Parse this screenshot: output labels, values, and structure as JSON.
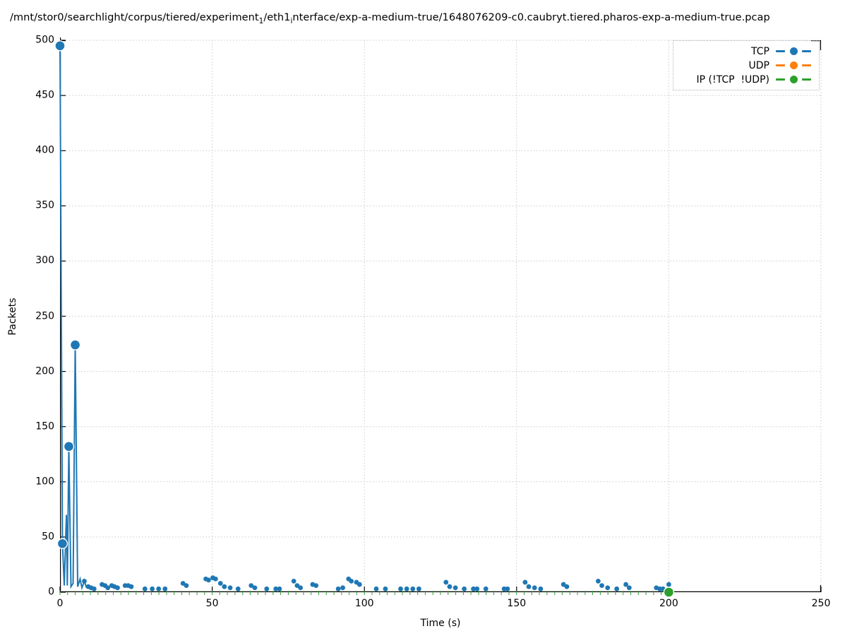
{
  "title": {
    "part1": "/mnt/stor0/searchlight/corpus/tiered/experiment",
    "sub1": "1",
    "part2": "/eth1",
    "sub2": "i",
    "part3": "nterface/exp-a-medium-true/1648076209-c0.caubryt.tiered.pharos-exp-a-medium-true.pcap"
  },
  "chart_data": {
    "type": "line",
    "title": "/mnt/stor0/searchlight/corpus/tiered/experiment_1/eth1_interface/exp-a-medium-true/1648076209-c0.caubryt.tiered.pharos-exp-a-medium-true.pcap",
    "xlabel": "Time (s)",
    "ylabel": "Packets",
    "xlim": [
      0,
      250
    ],
    "ylim": [
      0,
      500
    ],
    "x_ticks": [
      0,
      50,
      100,
      150,
      200,
      250
    ],
    "y_ticks": [
      0,
      50,
      100,
      150,
      200,
      250,
      300,
      350,
      400,
      450,
      500
    ],
    "grid": "dotted",
    "legend_position": "top-right",
    "series": [
      {
        "name": "TCP",
        "color": "#1f77b4",
        "line_points": [
          [
            0,
            495
          ],
          [
            0.8,
            44
          ],
          [
            1.4,
            6
          ],
          [
            2.1,
            70
          ],
          [
            2.4,
            6
          ],
          [
            2.9,
            132
          ],
          [
            3.6,
            5
          ],
          [
            4.3,
            8
          ],
          [
            5.0,
            224
          ],
          [
            5.8,
            5
          ],
          [
            6.6,
            12
          ],
          [
            7.2,
            4
          ],
          [
            8.0,
            10
          ],
          [
            8.7,
            4
          ]
        ],
        "major_markers": [
          [
            0,
            495
          ],
          [
            0.8,
            44
          ],
          [
            2.9,
            132
          ],
          [
            5.0,
            224
          ]
        ],
        "minor_markers": [
          [
            8,
            10
          ],
          [
            9.3,
            5
          ],
          [
            10.2,
            4
          ],
          [
            11.2,
            3
          ],
          [
            13.8,
            7
          ],
          [
            14.8,
            6
          ],
          [
            15.7,
            4
          ],
          [
            17,
            6
          ],
          [
            17.9,
            5
          ],
          [
            18.9,
            4
          ],
          [
            21.4,
            6
          ],
          [
            22.4,
            6
          ],
          [
            23.4,
            5
          ],
          [
            27.9,
            3
          ],
          [
            30.3,
            3
          ],
          [
            32.4,
            3
          ],
          [
            34.5,
            3
          ],
          [
            40.4,
            8
          ],
          [
            41.5,
            6
          ],
          [
            47.9,
            12
          ],
          [
            48.8,
            11
          ],
          [
            50.2,
            13
          ],
          [
            51.1,
            12
          ],
          [
            52.7,
            8
          ],
          [
            54,
            5
          ],
          [
            55.9,
            4
          ],
          [
            58.5,
            3
          ],
          [
            62.8,
            6
          ],
          [
            64,
            4
          ],
          [
            67.9,
            3
          ],
          [
            70.9,
            3
          ],
          [
            72.1,
            3
          ],
          [
            76.8,
            10
          ],
          [
            77.9,
            6
          ],
          [
            79,
            4
          ],
          [
            83,
            7
          ],
          [
            84.1,
            6
          ],
          [
            91.4,
            3
          ],
          [
            92.9,
            4
          ],
          [
            94.8,
            12
          ],
          [
            95.7,
            10
          ],
          [
            97.4,
            9
          ],
          [
            98.4,
            7
          ],
          [
            103.9,
            3
          ],
          [
            106.9,
            3
          ],
          [
            111.9,
            3
          ],
          [
            113.9,
            3
          ],
          [
            115.9,
            3
          ],
          [
            117.9,
            3
          ],
          [
            126.8,
            9
          ],
          [
            128,
            5
          ],
          [
            129.9,
            4
          ],
          [
            132.8,
            3
          ],
          [
            135.8,
            3
          ],
          [
            137,
            3
          ],
          [
            139.9,
            3
          ],
          [
            145.9,
            3
          ],
          [
            147,
            3
          ],
          [
            152.8,
            9
          ],
          [
            154,
            5
          ],
          [
            155.9,
            4
          ],
          [
            157.9,
            3
          ],
          [
            165.4,
            7
          ],
          [
            166.5,
            5
          ],
          [
            176.8,
            10
          ],
          [
            178,
            6
          ],
          [
            179.9,
            4
          ],
          [
            182.9,
            3
          ],
          [
            185.9,
            7
          ],
          [
            187,
            4
          ],
          [
            195.9,
            4
          ],
          [
            197,
            3
          ],
          [
            198.1,
            3
          ],
          [
            200,
            7
          ]
        ]
      },
      {
        "name": "UDP",
        "color": "#ff7f0e",
        "line_points": [],
        "major_markers": [],
        "minor_markers": []
      },
      {
        "name": "IP (!TCP  !UDP)",
        "color": "#2ca02c",
        "constant": {
          "value": 0,
          "x_start": 0,
          "x_end": 200,
          "x_step": 2.5
        },
        "major_markers": [
          [
            200,
            0
          ]
        ],
        "minor_markers": []
      }
    ]
  }
}
